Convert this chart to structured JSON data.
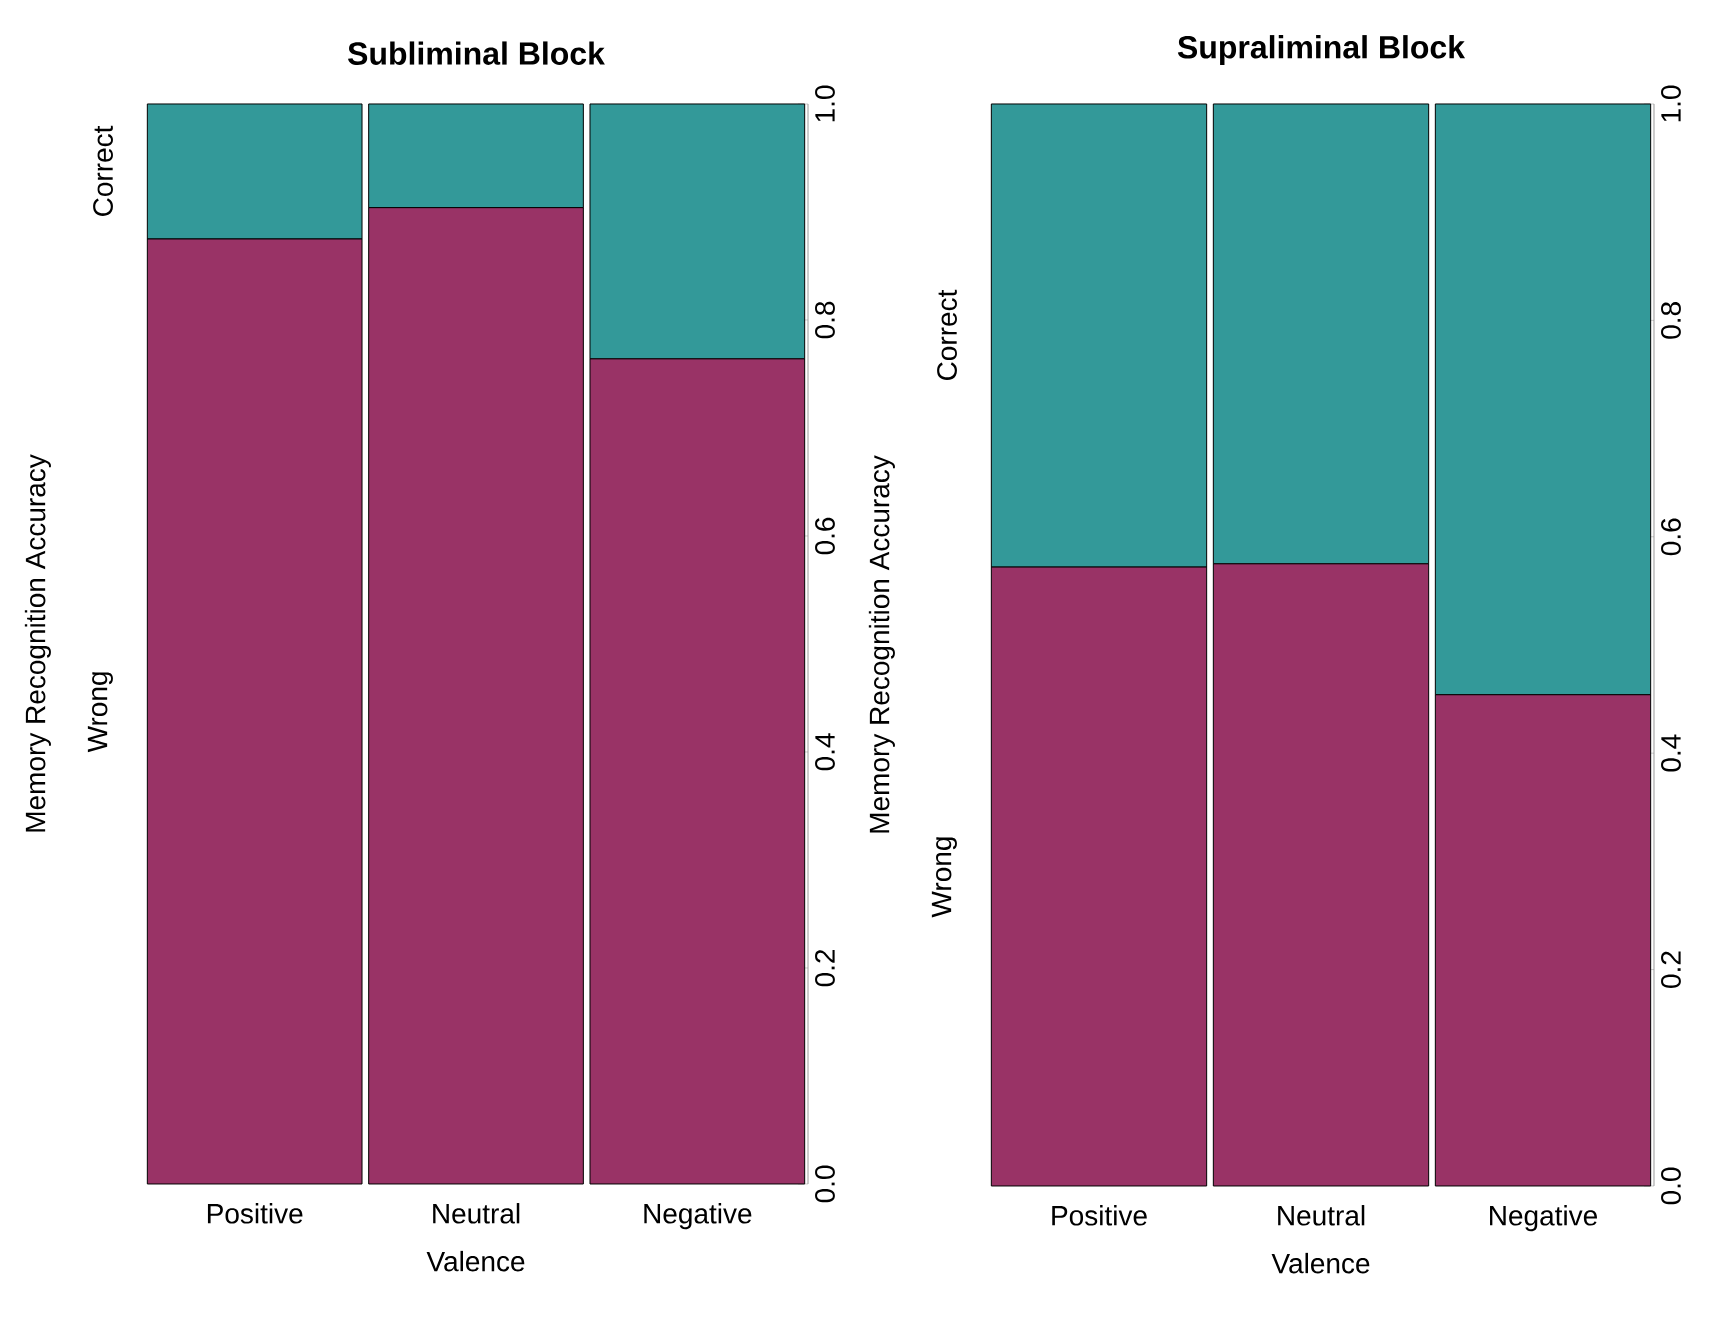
{
  "chart_data": [
    {
      "type": "bar",
      "stacked": true,
      "title": "Subliminal Block",
      "xlabel": "Valence",
      "ylabel": "Memory Recognition Accuracy",
      "categories": [
        "Positive",
        "Neutral",
        "Negative"
      ],
      "series": [
        {
          "name": "Wrong",
          "color": "#993366",
          "values": [
            0.875,
            0.904,
            0.764
          ]
        },
        {
          "name": "Correct",
          "color": "#339999",
          "values": [
            0.125,
            0.096,
            0.236
          ]
        }
      ],
      "ylim": [
        0,
        1
      ],
      "yticks": [
        {
          "value": 0,
          "label": "0.0"
        },
        {
          "value": 0.2,
          "label": "0.2"
        },
        {
          "value": 0.4,
          "label": "0.4"
        },
        {
          "value": 0.6,
          "label": "0.6"
        },
        {
          "value": 0.8,
          "label": "0.8"
        },
        {
          "value": 1,
          "label": "1.0"
        }
      ]
    },
    {
      "type": "bar",
      "stacked": true,
      "title": "Supraliminal Block",
      "xlabel": "Valence",
      "ylabel": "Memory Recognition Accuracy",
      "categories": [
        "Positive",
        "Neutral",
        "Negative"
      ],
      "series": [
        {
          "name": "Wrong",
          "color": "#993366",
          "values": [
            0.572,
            0.575,
            0.454
          ]
        },
        {
          "name": "Correct",
          "color": "#339999",
          "values": [
            0.428,
            0.425,
            0.546
          ]
        }
      ],
      "ylim": [
        0,
        1
      ],
      "yticks": [
        {
          "value": 0,
          "label": "0.0"
        },
        {
          "value": 0.2,
          "label": "0.2"
        },
        {
          "value": 0.4,
          "label": "0.4"
        },
        {
          "value": 0.6,
          "label": "0.6"
        },
        {
          "value": 0.8,
          "label": "0.8"
        },
        {
          "value": 1,
          "label": "1.0"
        }
      ]
    }
  ]
}
